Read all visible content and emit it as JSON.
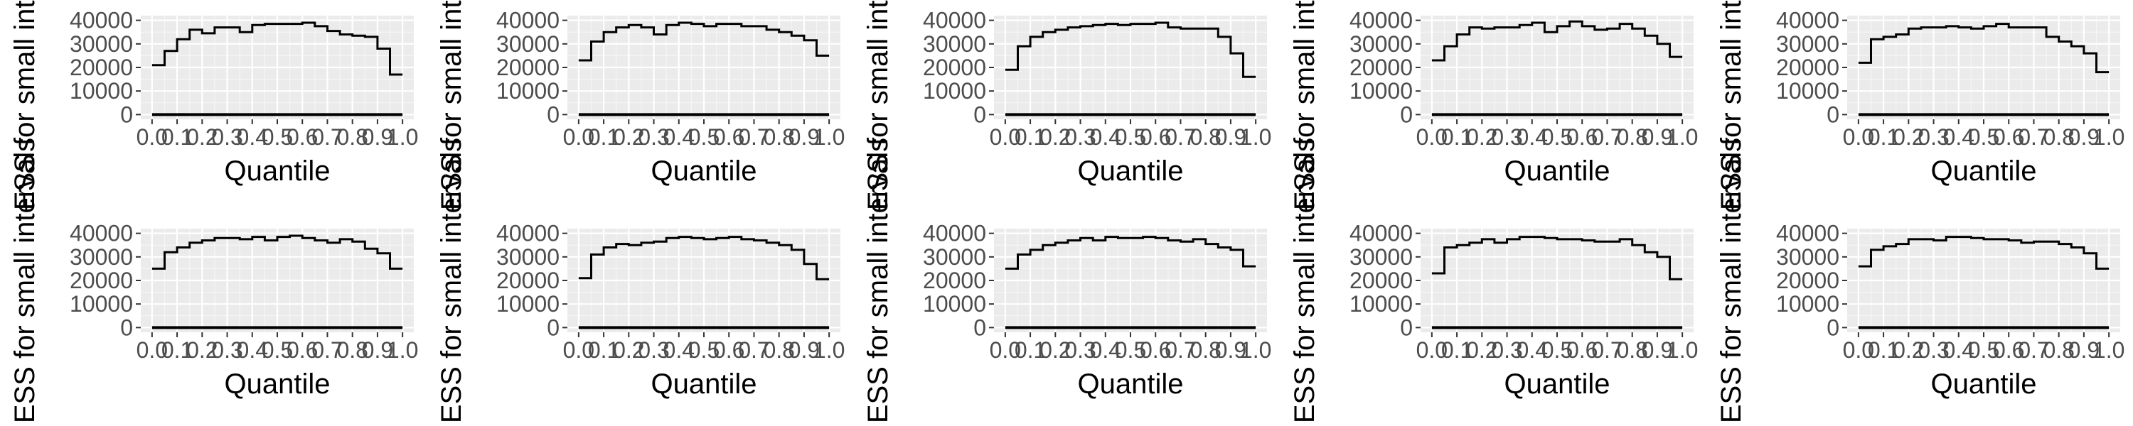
{
  "colors": {
    "panel_background": "#ebebeb",
    "grid_major": "#ffffff",
    "grid_minor": "#f5f5f5",
    "line": "#000000",
    "tick_text": "#4d4d4d",
    "title_text": "#000000"
  },
  "chart_data": [
    {
      "type": "line",
      "step": true,
      "xlabel": "Quantile",
      "ylabel": "ESS for small intervals",
      "xlim": [
        0,
        1
      ],
      "ylim": [
        0,
        40000
      ],
      "xticks": [
        "0.0",
        "0.1",
        "0.2",
        "0.3",
        "0.4",
        "0.5",
        "0.6",
        "0.7",
        "0.8",
        "0.9",
        "1.0"
      ],
      "yticks": [
        "0",
        "10000",
        "20000",
        "30000",
        "40000"
      ],
      "grid": true,
      "bins": 20,
      "series": [
        {
          "values": [
            21000,
            27000,
            32000,
            36000,
            34500,
            37000,
            37000,
            35000,
            38000,
            38500,
            38500,
            38500,
            39000,
            37500,
            35500,
            34000,
            33500,
            33000,
            28000,
            17000
          ]
        },
        {
          "values": [
            0,
            0,
            0,
            0,
            0,
            0,
            0,
            0,
            0,
            0,
            0,
            0,
            0,
            0,
            0,
            0,
            0,
            0,
            0,
            0
          ]
        }
      ]
    },
    {
      "type": "line",
      "step": true,
      "xlabel": "Quantile",
      "ylabel": "ESS for small intervals",
      "xlim": [
        0,
        1
      ],
      "ylim": [
        0,
        40000
      ],
      "xticks": [
        "0.0",
        "0.1",
        "0.2",
        "0.3",
        "0.4",
        "0.5",
        "0.6",
        "0.7",
        "0.8",
        "0.9",
        "1.0"
      ],
      "yticks": [
        "0",
        "10000",
        "20000",
        "30000",
        "40000"
      ],
      "grid": true,
      "bins": 20,
      "series": [
        {
          "values": [
            23000,
            31000,
            35000,
            37000,
            38000,
            37000,
            34000,
            38000,
            39000,
            38500,
            37500,
            38500,
            38500,
            37500,
            37500,
            36000,
            35000,
            33500,
            31500,
            25000
          ]
        },
        {
          "values": [
            0,
            0,
            0,
            0,
            0,
            0,
            0,
            0,
            0,
            0,
            0,
            0,
            0,
            0,
            0,
            0,
            0,
            0,
            0,
            0
          ]
        }
      ]
    },
    {
      "type": "line",
      "step": true,
      "xlabel": "Quantile",
      "ylabel": "ESS for small intervals",
      "xlim": [
        0,
        1
      ],
      "ylim": [
        0,
        40000
      ],
      "xticks": [
        "0.0",
        "0.1",
        "0.2",
        "0.3",
        "0.4",
        "0.5",
        "0.6",
        "0.7",
        "0.8",
        "0.9",
        "1.0"
      ],
      "yticks": [
        "0",
        "10000",
        "20000",
        "30000",
        "40000"
      ],
      "grid": true,
      "bins": 20,
      "series": [
        {
          "values": [
            19000,
            29000,
            33000,
            35000,
            36000,
            37000,
            37500,
            38000,
            38500,
            38000,
            38500,
            38500,
            39000,
            37000,
            36500,
            36500,
            36500,
            33000,
            26000,
            16000
          ]
        },
        {
          "values": [
            0,
            0,
            0,
            0,
            0,
            0,
            0,
            0,
            0,
            0,
            0,
            0,
            0,
            0,
            0,
            0,
            0,
            0,
            0,
            0
          ]
        }
      ]
    },
    {
      "type": "line",
      "step": true,
      "xlabel": "Quantile",
      "ylabel": "ESS for small intervals",
      "xlim": [
        0,
        1
      ],
      "ylim": [
        0,
        40000
      ],
      "xticks": [
        "0.0",
        "0.1",
        "0.2",
        "0.3",
        "0.4",
        "0.5",
        "0.6",
        "0.7",
        "0.8",
        "0.9",
        "1.0"
      ],
      "yticks": [
        "0",
        "10000",
        "20000",
        "30000",
        "40000"
      ],
      "grid": true,
      "bins": 20,
      "series": [
        {
          "values": [
            23000,
            29000,
            34000,
            37000,
            36500,
            37000,
            37000,
            38000,
            39000,
            35000,
            37500,
            39500,
            37500,
            36000,
            36500,
            38500,
            36500,
            33500,
            30000,
            24500
          ]
        },
        {
          "values": [
            0,
            0,
            0,
            0,
            0,
            0,
            0,
            0,
            0,
            0,
            0,
            0,
            0,
            0,
            0,
            0,
            0,
            0,
            0,
            0
          ]
        }
      ]
    },
    {
      "type": "line",
      "step": true,
      "xlabel": "Quantile",
      "ylabel": "ESS for small intervals",
      "xlim": [
        0,
        1
      ],
      "ylim": [
        0,
        40000
      ],
      "xticks": [
        "0.0",
        "0.1",
        "0.2",
        "0.3",
        "0.4",
        "0.5",
        "0.6",
        "0.7",
        "0.8",
        "0.9",
        "1.0"
      ],
      "yticks": [
        "0",
        "10000",
        "20000",
        "30000",
        "40000"
      ],
      "grid": true,
      "bins": 20,
      "series": [
        {
          "values": [
            22000,
            32000,
            33000,
            34000,
            36500,
            37000,
            37000,
            37500,
            37000,
            36500,
            37500,
            38500,
            37000,
            37000,
            37000,
            33000,
            31000,
            29000,
            26000,
            18000
          ]
        },
        {
          "values": [
            0,
            0,
            0,
            0,
            0,
            0,
            0,
            0,
            0,
            0,
            0,
            0,
            0,
            0,
            0,
            0,
            0,
            0,
            0,
            0
          ]
        }
      ]
    },
    {
      "type": "line",
      "step": true,
      "xlabel": "Quantile",
      "ylabel": "ESS for small intervals",
      "xlim": [
        0,
        1
      ],
      "ylim": [
        0,
        40000
      ],
      "xticks": [
        "0.0",
        "0.1",
        "0.2",
        "0.3",
        "0.4",
        "0.5",
        "0.6",
        "0.7",
        "0.8",
        "0.9",
        "1.0"
      ],
      "yticks": [
        "0",
        "10000",
        "20000",
        "30000",
        "40000"
      ],
      "grid": true,
      "bins": 20,
      "series": [
        {
          "values": [
            25000,
            32000,
            34000,
            36000,
            37000,
            38000,
            38000,
            37500,
            38500,
            37000,
            38500,
            39000,
            38000,
            37000,
            36000,
            37500,
            36500,
            33500,
            31500,
            25000
          ]
        },
        {
          "values": [
            0,
            0,
            0,
            0,
            0,
            0,
            0,
            0,
            0,
            0,
            0,
            0,
            0,
            0,
            0,
            0,
            0,
            0,
            0,
            0
          ]
        }
      ]
    },
    {
      "type": "line",
      "step": true,
      "xlabel": "Quantile",
      "ylabel": "ESS for small intervals",
      "xlim": [
        0,
        1
      ],
      "ylim": [
        0,
        40000
      ],
      "xticks": [
        "0.0",
        "0.1",
        "0.2",
        "0.3",
        "0.4",
        "0.5",
        "0.6",
        "0.7",
        "0.8",
        "0.9",
        "1.0"
      ],
      "yticks": [
        "0",
        "10000",
        "20000",
        "30000",
        "40000"
      ],
      "grid": true,
      "bins": 20,
      "series": [
        {
          "values": [
            21000,
            31000,
            34000,
            35500,
            35000,
            36000,
            36500,
            38000,
            38500,
            38000,
            37500,
            38000,
            38500,
            37500,
            37000,
            36000,
            35000,
            33000,
            27000,
            20500
          ]
        },
        {
          "values": [
            0,
            0,
            0,
            0,
            0,
            0,
            0,
            0,
            0,
            0,
            0,
            0,
            0,
            0,
            0,
            0,
            0,
            0,
            0,
            0
          ]
        }
      ]
    },
    {
      "type": "line",
      "step": true,
      "xlabel": "Quantile",
      "ylabel": "ESS for small intervals",
      "xlim": [
        0,
        1
      ],
      "ylim": [
        0,
        40000
      ],
      "xticks": [
        "0.0",
        "0.1",
        "0.2",
        "0.3",
        "0.4",
        "0.5",
        "0.6",
        "0.7",
        "0.8",
        "0.9",
        "1.0"
      ],
      "yticks": [
        "0",
        "10000",
        "20000",
        "30000",
        "40000"
      ],
      "grid": true,
      "bins": 20,
      "series": [
        {
          "values": [
            25000,
            31000,
            33000,
            35000,
            36000,
            37000,
            38000,
            37000,
            38500,
            38000,
            38000,
            38500,
            38000,
            37000,
            36500,
            37500,
            35500,
            34000,
            33000,
            26000
          ]
        },
        {
          "values": [
            0,
            0,
            0,
            0,
            0,
            0,
            0,
            0,
            0,
            0,
            0,
            0,
            0,
            0,
            0,
            0,
            0,
            0,
            0,
            0
          ]
        }
      ]
    },
    {
      "type": "line",
      "step": true,
      "xlabel": "Quantile",
      "ylabel": "ESS for small intervals",
      "xlim": [
        0,
        1
      ],
      "ylim": [
        0,
        40000
      ],
      "xticks": [
        "0.0",
        "0.1",
        "0.2",
        "0.3",
        "0.4",
        "0.5",
        "0.6",
        "0.7",
        "0.8",
        "0.9",
        "1.0"
      ],
      "yticks": [
        "0",
        "10000",
        "20000",
        "30000",
        "40000"
      ],
      "grid": true,
      "bins": 20,
      "series": [
        {
          "values": [
            23000,
            34000,
            35000,
            36000,
            37500,
            36000,
            37500,
            38500,
            38500,
            38000,
            37500,
            37500,
            37000,
            36500,
            36500,
            37500,
            35000,
            32000,
            30000,
            20500
          ]
        },
        {
          "values": [
            0,
            0,
            0,
            0,
            0,
            0,
            0,
            0,
            0,
            0,
            0,
            0,
            0,
            0,
            0,
            0,
            0,
            0,
            0,
            0
          ]
        }
      ]
    },
    {
      "type": "line",
      "step": true,
      "xlabel": "Quantile",
      "ylabel": "ESS for small intervals",
      "xlim": [
        0,
        1
      ],
      "ylim": [
        0,
        40000
      ],
      "xticks": [
        "0.0",
        "0.1",
        "0.2",
        "0.3",
        "0.4",
        "0.5",
        "0.6",
        "0.7",
        "0.8",
        "0.9",
        "1.0"
      ],
      "yticks": [
        "0",
        "10000",
        "20000",
        "30000",
        "40000"
      ],
      "grid": true,
      "bins": 20,
      "series": [
        {
          "values": [
            26000,
            33000,
            34500,
            35500,
            37500,
            37500,
            37000,
            38500,
            38500,
            38000,
            37500,
            37500,
            37000,
            36000,
            36500,
            36500,
            35500,
            34000,
            31500,
            25000
          ]
        },
        {
          "values": [
            0,
            0,
            0,
            0,
            0,
            0,
            0,
            0,
            0,
            0,
            0,
            0,
            0,
            0,
            0,
            0,
            0,
            0,
            0,
            0
          ]
        }
      ]
    }
  ]
}
